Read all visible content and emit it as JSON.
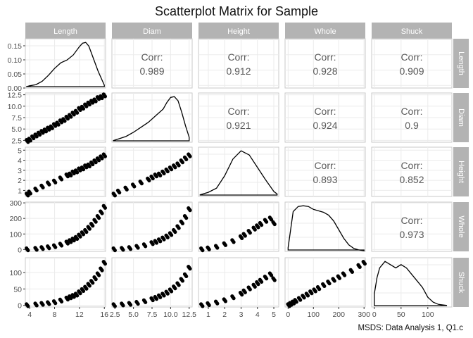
{
  "chart_data": {
    "type": "scatterplot-matrix",
    "title": "Scatterplot Matrix for Sample",
    "caption": "MSDS: Data Analysis 1, Q1.c",
    "variables": [
      "Length",
      "Diam",
      "Height",
      "Whole",
      "Shuck"
    ],
    "correlations": [
      {
        "row": "Length",
        "col": "Diam",
        "label": "Corr:",
        "value": "0.989"
      },
      {
        "row": "Length",
        "col": "Height",
        "label": "Corr:",
        "value": "0.912"
      },
      {
        "row": "Length",
        "col": "Whole",
        "label": "Corr:",
        "value": "0.928"
      },
      {
        "row": "Length",
        "col": "Shuck",
        "label": "Corr:",
        "value": "0.909"
      },
      {
        "row": "Diam",
        "col": "Height",
        "label": "Corr:",
        "value": "0.921"
      },
      {
        "row": "Diam",
        "col": "Whole",
        "label": "Corr:",
        "value": "0.924"
      },
      {
        "row": "Diam",
        "col": "Shuck",
        "label": "Corr:",
        "value": "0.9"
      },
      {
        "row": "Height",
        "col": "Whole",
        "label": "Corr:",
        "value": "0.893"
      },
      {
        "row": "Height",
        "col": "Shuck",
        "label": "Corr:",
        "value": "0.852"
      },
      {
        "row": "Whole",
        "col": "Shuck",
        "label": "Corr:",
        "value": "0.973"
      }
    ],
    "axes": {
      "Length": {
        "range": [
          3.3,
          16.2
        ],
        "ticks": [
          4,
          8,
          12,
          16
        ]
      },
      "Diam": {
        "range": [
          2.1,
          12.9
        ],
        "ticks": [
          2.5,
          5.0,
          7.5,
          10.0,
          12.5
        ]
      },
      "Height": {
        "range": [
          0.4,
          5.3
        ],
        "ticks": [
          1,
          2,
          3,
          4,
          5
        ]
      },
      "Whole": {
        "range": [
          -12,
          305
        ],
        "ticks": [
          0,
          100,
          200,
          300
        ]
      },
      "Shuck": {
        "range": [
          -5,
          145
        ],
        "ticks": [
          0,
          50,
          100
        ]
      }
    },
    "density_axis": {
      "range": [
        0,
        0.175
      ],
      "ticks": [
        0.0,
        0.05,
        0.1,
        0.15
      ]
    },
    "densities": {
      "Length": {
        "x": [
          3.5,
          4,
          5,
          6,
          7,
          8,
          9,
          10,
          11,
          12,
          12.5,
          13,
          13.5,
          14,
          15,
          16
        ],
        "y": [
          0.005,
          0.008,
          0.012,
          0.024,
          0.045,
          0.07,
          0.09,
          0.1,
          0.118,
          0.148,
          0.16,
          0.163,
          0.15,
          0.12,
          0.06,
          0.01
        ]
      },
      "Diam": {
        "x": [
          2.3,
          3,
          4,
          5,
          6,
          7,
          8,
          9,
          9.5,
          10,
          10.5,
          11,
          11.5,
          12,
          12.5
        ],
        "y": [
          0.01,
          0.02,
          0.035,
          0.06,
          0.09,
          0.12,
          0.16,
          0.2,
          0.24,
          0.27,
          0.275,
          0.25,
          0.18,
          0.1,
          0.03
        ]
      },
      "Height": {
        "x": [
          0.5,
          1,
          1.5,
          2,
          2.5,
          3,
          3.5,
          4,
          4.5,
          5,
          5.2
        ],
        "y": [
          0.02,
          0.05,
          0.1,
          0.25,
          0.45,
          0.55,
          0.5,
          0.35,
          0.2,
          0.06,
          0.03
        ]
      },
      "Whole": {
        "x": [
          0,
          20,
          40,
          60,
          80,
          100,
          120,
          140,
          160,
          180,
          200,
          220,
          240,
          260,
          280,
          300
        ],
        "y": [
          0.0005,
          0.0055,
          0.0062,
          0.0063,
          0.0062,
          0.0058,
          0.0056,
          0.0054,
          0.005,
          0.0042,
          0.003,
          0.0018,
          0.0009,
          0.0004,
          0.0002,
          0.0001
        ]
      },
      "Shuck": {
        "x": [
          0,
          5,
          10,
          20,
          30,
          40,
          50,
          60,
          70,
          80,
          90,
          100,
          110,
          120,
          135
        ],
        "y": [
          0.004,
          0.009,
          0.012,
          0.014,
          0.013,
          0.012,
          0.013,
          0.012,
          0.01,
          0.008,
          0.006,
          0.003,
          0.0015,
          0.0008,
          0.0005
        ]
      }
    },
    "scatter": {
      "Diam_vs_Length": {
        "x": [
          3.6,
          4.0,
          4.5,
          5.0,
          5.5,
          6.0,
          6.5,
          7.0,
          7.5,
          8.0,
          8.5,
          9.0,
          9.5,
          10.0,
          10.5,
          11.0,
          11.5,
          12.0,
          12.5,
          13.0,
          13.5,
          14.0,
          14.5,
          15.0,
          15.5,
          16.0
        ],
        "y": [
          2.4,
          2.7,
          3.2,
          3.6,
          4.0,
          4.4,
          4.7,
          5.1,
          5.4,
          5.9,
          6.2,
          6.7,
          7.0,
          7.5,
          7.9,
          8.4,
          8.8,
          9.4,
          9.7,
          10.2,
          10.6,
          11.0,
          11.3,
          11.8,
          12.0,
          12.4
        ]
      },
      "Height_vs_Length": {
        "x": [
          3.6,
          4.0,
          5.0,
          6.0,
          7.0,
          8.0,
          9.0,
          10.0,
          10.5,
          11.0,
          11.5,
          12.0,
          12.5,
          13.0,
          13.5,
          14.0,
          14.5,
          15.0,
          15.5,
          16.0
        ],
        "y": [
          0.6,
          0.8,
          1.1,
          1.4,
          1.7,
          1.9,
          2.2,
          2.5,
          2.6,
          2.8,
          2.9,
          3.1,
          3.2,
          3.4,
          3.5,
          3.7,
          3.9,
          4.1,
          4.3,
          4.5
        ]
      },
      "Height_vs_Diam": {
        "x": [
          2.4,
          3.0,
          4.0,
          5.0,
          6.0,
          7.0,
          7.5,
          8.0,
          8.5,
          9.0,
          9.5,
          10.0,
          10.5,
          11.0,
          11.5,
          12.0,
          12.5
        ],
        "y": [
          0.6,
          0.9,
          1.2,
          1.5,
          1.8,
          2.1,
          2.3,
          2.5,
          2.6,
          2.8,
          3.0,
          3.2,
          3.4,
          3.6,
          3.9,
          4.2,
          4.5
        ]
      },
      "Whole_vs_Length": {
        "x": [
          3.6,
          5.0,
          6.0,
          7.0,
          8.0,
          9.0,
          10.0,
          10.5,
          11.0,
          11.5,
          12.0,
          12.5,
          13.0,
          13.5,
          14.0,
          14.5,
          15.0,
          15.5,
          16.0
        ],
        "y": [
          2,
          5,
          10,
          15,
          22,
          32,
          45,
          55,
          65,
          75,
          90,
          105,
          120,
          140,
          160,
          185,
          210,
          240,
          275
        ]
      },
      "Whole_vs_Diam": {
        "x": [
          2.4,
          3.5,
          4.5,
          5.5,
          6.5,
          7.5,
          8.0,
          8.5,
          9.0,
          9.5,
          10.0,
          10.5,
          11.0,
          11.5,
          12.0,
          12.5
        ],
        "y": [
          2,
          5,
          10,
          18,
          28,
          42,
          50,
          60,
          72,
          85,
          100,
          120,
          145,
          175,
          210,
          260
        ]
      },
      "Whole_vs_Height": {
        "x": [
          0.6,
          1.0,
          1.5,
          2.0,
          2.5,
          3.0,
          3.2,
          3.5,
          3.8,
          4.0,
          4.2,
          4.5,
          4.8,
          5.0
        ],
        "y": [
          2,
          8,
          18,
          35,
          55,
          80,
          95,
          115,
          135,
          150,
          165,
          185,
          200,
          170
        ]
      },
      "Shuck_vs_Length": {
        "x": [
          3.6,
          5.0,
          6.0,
          7.0,
          8.0,
          9.0,
          10.0,
          10.5,
          11.0,
          11.5,
          12.0,
          12.5,
          13.0,
          13.5,
          14.0,
          14.5,
          15.0,
          15.5,
          16.0
        ],
        "y": [
          1,
          3,
          5,
          7,
          10,
          15,
          21,
          25,
          29,
          33,
          40,
          47,
          54,
          63,
          72,
          83,
          95,
          110,
          130
        ]
      },
      "Shuck_vs_Diam": {
        "x": [
          2.4,
          3.5,
          4.5,
          5.5,
          6.5,
          7.5,
          8.0,
          8.5,
          9.0,
          9.5,
          10.0,
          10.5,
          11.0,
          11.5,
          12.0,
          12.5
        ],
        "y": [
          1,
          3,
          5,
          8,
          13,
          19,
          23,
          28,
          33,
          39,
          46,
          55,
          65,
          78,
          92,
          115
        ]
      },
      "Shuck_vs_Height": {
        "x": [
          0.6,
          1.0,
          1.5,
          2.0,
          2.5,
          3.0,
          3.2,
          3.5,
          3.8,
          4.0,
          4.2,
          4.5,
          4.8,
          5.0
        ],
        "y": [
          1,
          4,
          9,
          16,
          25,
          36,
          43,
          52,
          60,
          68,
          75,
          85,
          95,
          80
        ]
      },
      "Shuck_vs_Whole": {
        "x": [
          2,
          10,
          20,
          30,
          45,
          60,
          75,
          90,
          105,
          120,
          140,
          160,
          180,
          200,
          220,
          250,
          280,
          300
        ],
        "y": [
          1,
          5,
          9,
          14,
          20,
          27,
          33,
          40,
          46,
          53,
          62,
          70,
          78,
          86,
          95,
          105,
          120,
          130
        ]
      }
    }
  }
}
